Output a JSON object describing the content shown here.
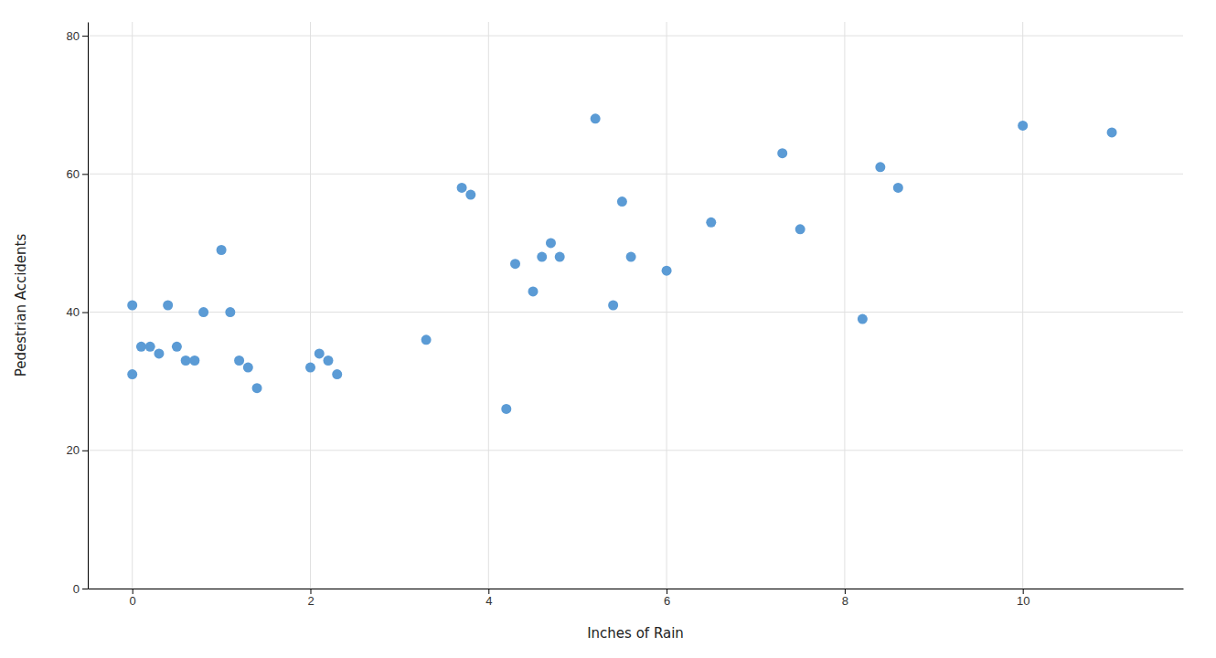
{
  "chart_data": {
    "type": "scatter",
    "x": [
      0.0,
      0.0,
      0.1,
      0.2,
      0.3,
      0.4,
      0.5,
      0.6,
      0.7,
      0.8,
      1.0,
      1.1,
      1.2,
      1.3,
      1.4,
      2.0,
      2.1,
      2.2,
      2.3,
      3.3,
      3.7,
      3.8,
      4.2,
      4.3,
      4.5,
      4.6,
      4.7,
      4.8,
      5.2,
      5.4,
      5.5,
      5.6,
      6.0,
      6.5,
      7.3,
      7.5,
      8.2,
      8.4,
      8.6,
      10.0,
      11.0
    ],
    "values": [
      31,
      41,
      35,
      35,
      34,
      41,
      35,
      33,
      33,
      40,
      49,
      40,
      33,
      32,
      29,
      32,
      34,
      33,
      31,
      36,
      58,
      57,
      26,
      47,
      43,
      48,
      50,
      48,
      68,
      41,
      56,
      48,
      46,
      53,
      63,
      52,
      39,
      61,
      58,
      67,
      66
    ],
    "color": "#5B9BD5",
    "xlabel": "Inches of Rain",
    "ylabel": "Pedestrian Accidents",
    "xlim": [
      -0.5,
      11.8
    ],
    "ylim": [
      0,
      82
    ],
    "xticks": [
      0,
      2,
      4,
      6,
      8,
      10
    ],
    "yticks": [
      0,
      20,
      40,
      60,
      80
    ],
    "grid": true
  }
}
